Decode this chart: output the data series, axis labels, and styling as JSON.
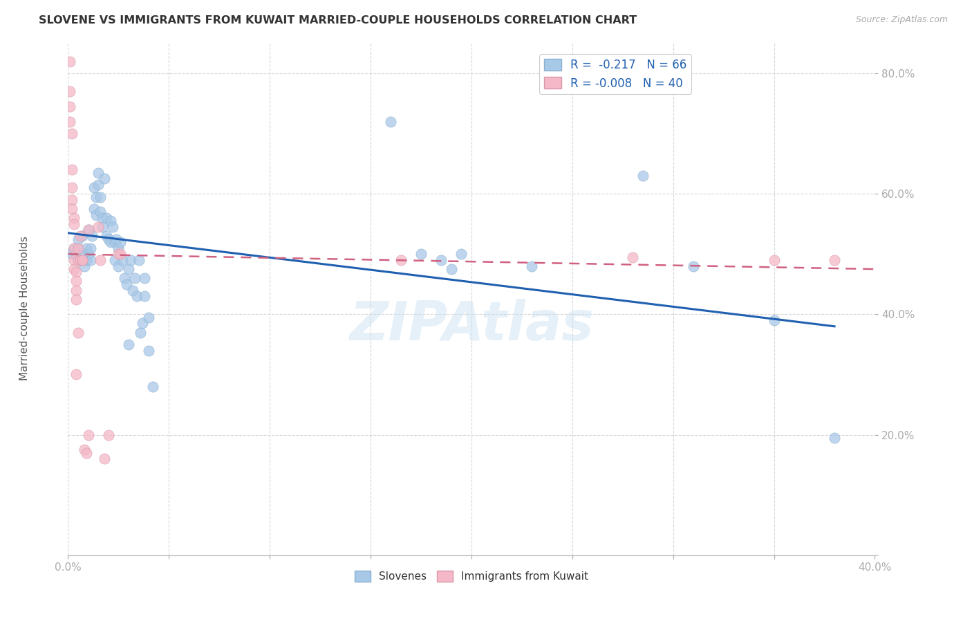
{
  "title": "SLOVENE VS IMMIGRANTS FROM KUWAIT MARRIED-COUPLE HOUSEHOLDS CORRELATION CHART",
  "source": "Source: ZipAtlas.com",
  "ylabel": "Married-couple Households",
  "xmin": 0.0,
  "xmax": 0.4,
  "ymin": 0.0,
  "ymax": 0.85,
  "xtick_vals": [
    0.0,
    0.05,
    0.1,
    0.15,
    0.2,
    0.25,
    0.3,
    0.35,
    0.4
  ],
  "xtick_labels_show": [
    "0.0%",
    "",
    "",
    "",
    "",
    "",
    "",
    "",
    "40.0%"
  ],
  "ytick_vals": [
    0.0,
    0.2,
    0.4,
    0.6,
    0.8
  ],
  "ytick_labels": [
    "",
    "20.0%",
    "40.0%",
    "60.0%",
    "80.0%"
  ],
  "legend_R1": "R =  -0.217",
  "legend_N1": "N = 66",
  "legend_R2": "R = -0.008",
  "legend_N2": "N = 40",
  "color_blue": "#a8c8e8",
  "color_pink": "#f4b8c8",
  "trendline_blue": "#2060b0",
  "trendline_pink": "#d06080",
  "watermark": "ZIPAtlas",
  "blue_points": [
    [
      0.002,
      0.5
    ],
    [
      0.003,
      0.51
    ],
    [
      0.004,
      0.5
    ],
    [
      0.005,
      0.51
    ],
    [
      0.005,
      0.525
    ],
    [
      0.006,
      0.49
    ],
    [
      0.007,
      0.53
    ],
    [
      0.008,
      0.5
    ],
    [
      0.008,
      0.48
    ],
    [
      0.009,
      0.51
    ],
    [
      0.009,
      0.49
    ],
    [
      0.01,
      0.5
    ],
    [
      0.01,
      0.54
    ],
    [
      0.011,
      0.51
    ],
    [
      0.011,
      0.49
    ],
    [
      0.012,
      0.53
    ],
    [
      0.013,
      0.61
    ],
    [
      0.013,
      0.575
    ],
    [
      0.014,
      0.595
    ],
    [
      0.014,
      0.565
    ],
    [
      0.015,
      0.615
    ],
    [
      0.015,
      0.635
    ],
    [
      0.016,
      0.595
    ],
    [
      0.016,
      0.57
    ],
    [
      0.017,
      0.56
    ],
    [
      0.017,
      0.545
    ],
    [
      0.018,
      0.625
    ],
    [
      0.019,
      0.56
    ],
    [
      0.019,
      0.53
    ],
    [
      0.02,
      0.525
    ],
    [
      0.021,
      0.555
    ],
    [
      0.021,
      0.52
    ],
    [
      0.022,
      0.545
    ],
    [
      0.023,
      0.52
    ],
    [
      0.023,
      0.49
    ],
    [
      0.024,
      0.525
    ],
    [
      0.025,
      0.51
    ],
    [
      0.025,
      0.48
    ],
    [
      0.026,
      0.52
    ],
    [
      0.027,
      0.49
    ],
    [
      0.028,
      0.46
    ],
    [
      0.029,
      0.45
    ],
    [
      0.03,
      0.475
    ],
    [
      0.031,
      0.49
    ],
    [
      0.032,
      0.44
    ],
    [
      0.033,
      0.46
    ],
    [
      0.034,
      0.43
    ],
    [
      0.035,
      0.49
    ],
    [
      0.036,
      0.37
    ],
    [
      0.037,
      0.385
    ],
    [
      0.038,
      0.46
    ],
    [
      0.038,
      0.43
    ],
    [
      0.04,
      0.395
    ],
    [
      0.04,
      0.34
    ],
    [
      0.042,
      0.28
    ],
    [
      0.16,
      0.72
    ],
    [
      0.175,
      0.5
    ],
    [
      0.185,
      0.49
    ],
    [
      0.19,
      0.475
    ],
    [
      0.195,
      0.5
    ],
    [
      0.23,
      0.48
    ],
    [
      0.285,
      0.63
    ],
    [
      0.31,
      0.48
    ],
    [
      0.35,
      0.39
    ],
    [
      0.38,
      0.195
    ],
    [
      0.03,
      0.35
    ]
  ],
  "pink_points": [
    [
      0.001,
      0.82
    ],
    [
      0.001,
      0.77
    ],
    [
      0.001,
      0.745
    ],
    [
      0.001,
      0.72
    ],
    [
      0.002,
      0.7
    ],
    [
      0.002,
      0.64
    ],
    [
      0.002,
      0.61
    ],
    [
      0.002,
      0.59
    ],
    [
      0.002,
      0.575
    ],
    [
      0.003,
      0.56
    ],
    [
      0.003,
      0.55
    ],
    [
      0.003,
      0.51
    ],
    [
      0.003,
      0.49
    ],
    [
      0.003,
      0.475
    ],
    [
      0.004,
      0.47
    ],
    [
      0.004,
      0.455
    ],
    [
      0.004,
      0.44
    ],
    [
      0.004,
      0.425
    ],
    [
      0.004,
      0.3
    ],
    [
      0.005,
      0.49
    ],
    [
      0.005,
      0.51
    ],
    [
      0.005,
      0.37
    ],
    [
      0.006,
      0.53
    ],
    [
      0.006,
      0.49
    ],
    [
      0.007,
      0.49
    ],
    [
      0.007,
      0.49
    ],
    [
      0.008,
      0.175
    ],
    [
      0.009,
      0.17
    ],
    [
      0.01,
      0.54
    ],
    [
      0.015,
      0.545
    ],
    [
      0.016,
      0.49
    ],
    [
      0.018,
      0.16
    ],
    [
      0.02,
      0.2
    ],
    [
      0.025,
      0.5
    ],
    [
      0.026,
      0.5
    ],
    [
      0.165,
      0.49
    ],
    [
      0.28,
      0.495
    ],
    [
      0.35,
      0.49
    ],
    [
      0.38,
      0.49
    ],
    [
      0.01,
      0.2
    ]
  ]
}
